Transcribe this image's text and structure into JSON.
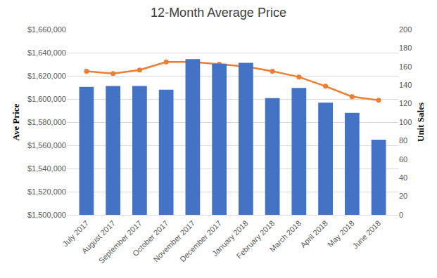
{
  "chart_data": {
    "type": "bar",
    "title": "12-Month Average Price",
    "ylabel": "Ave Price",
    "y2label": "Unit Sales",
    "categories": [
      "July 2017",
      "August 2017",
      "September 2017",
      "October 2017",
      "November 2017",
      "December 2017",
      "January 2018",
      "February 2018",
      "March 2018",
      "April 2018",
      "May 2018",
      "June 2018"
    ],
    "series": [
      {
        "type": "bar",
        "axis": "y2",
        "color": "#4472c4",
        "values": [
          138,
          139,
          139,
          135,
          168,
          163,
          164,
          126,
          137,
          121,
          110,
          81
        ]
      },
      {
        "type": "line",
        "color": "#ed7d31",
        "marker": "circle",
        "values": [
          1624000,
          1622000,
          1625000,
          1632000,
          1632000,
          1630000,
          1628000,
          1624000,
          1619000,
          1611000,
          1602000,
          1599000
        ]
      }
    ],
    "ylim": [
      1500000,
      1660000
    ],
    "yticks": [
      {
        "value": 1500000,
        "label": "$1,500,000"
      },
      {
        "value": 1520000,
        "label": "$1,520,000"
      },
      {
        "value": 1540000,
        "label": "$1,540,000"
      },
      {
        "value": 1560000,
        "label": "$1,560,000"
      },
      {
        "value": 1580000,
        "label": "$1,580,000"
      },
      {
        "value": 1600000,
        "label": "$1,600,000"
      },
      {
        "value": 1620000,
        "label": "$1,620,000"
      },
      {
        "value": 1640000,
        "label": "$1,640,000"
      },
      {
        "value": 1660000,
        "label": "$1,660,000"
      }
    ],
    "y2lim": [
      0,
      200
    ],
    "y2ticks": [
      0,
      20,
      40,
      60,
      80,
      100,
      120,
      140,
      160,
      180,
      200
    ],
    "grid": true
  }
}
